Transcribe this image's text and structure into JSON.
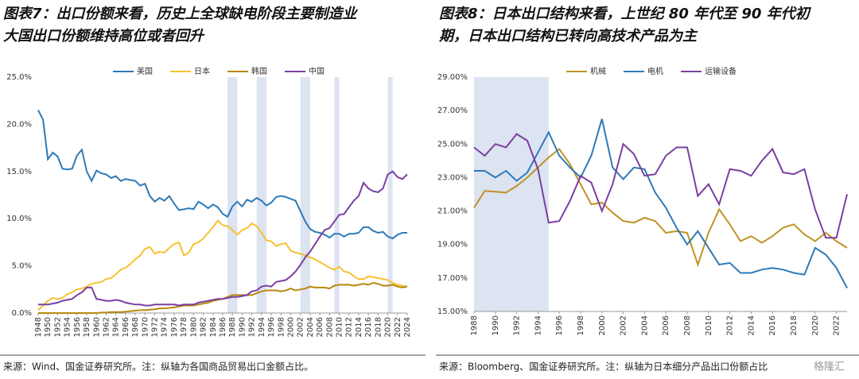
{
  "chart_data": [
    {
      "type": "line",
      "title": [
        "图表7：出口份额来看，历史上全球缺电阶段主要制造业",
        "大国出口份额维持高位或者回升"
      ],
      "source": "来源：Wind、国金证券研究所。注：纵轴为各国商品贸易出口金额占比。",
      "x": [
        1948,
        1949,
        1950,
        1951,
        1952,
        1953,
        1954,
        1955,
        1956,
        1957,
        1958,
        1959,
        1960,
        1961,
        1962,
        1963,
        1964,
        1965,
        1966,
        1967,
        1968,
        1969,
        1970,
        1971,
        1972,
        1973,
        1974,
        1975,
        1976,
        1977,
        1978,
        1979,
        1980,
        1981,
        1982,
        1983,
        1984,
        1985,
        1986,
        1987,
        1988,
        1989,
        1990,
        1991,
        1992,
        1993,
        1994,
        1995,
        1996,
        1997,
        1998,
        1999,
        2000,
        2001,
        2002,
        2003,
        2004,
        2005,
        2006,
        2007,
        2008,
        2009,
        2010,
        2011,
        2012,
        2013,
        2014,
        2015,
        2016,
        2017,
        2018,
        2019,
        2020,
        2021,
        2022,
        2023,
        2024
      ],
      "xlim": [
        1948,
        2024
      ],
      "xticks": [
        1948,
        1950,
        1952,
        1954,
        1956,
        1958,
        1960,
        1962,
        1964,
        1966,
        1968,
        1970,
        1972,
        1974,
        1976,
        1978,
        1980,
        1982,
        1984,
        1986,
        1988,
        1990,
        1992,
        1994,
        1996,
        1998,
        2000,
        2002,
        2004,
        2006,
        2008,
        2010,
        2012,
        2014,
        2016,
        2018,
        2020,
        2022,
        2024
      ],
      "ylim": [
        0,
        25
      ],
      "yticks": [
        {
          "value": 0,
          "label": "0.0%"
        },
        {
          "value": 5,
          "label": "5.0%"
        },
        {
          "value": 10,
          "label": "10.0%"
        },
        {
          "value": 15,
          "label": "15.0%"
        },
        {
          "value": 20,
          "label": "20.0%"
        },
        {
          "value": 25,
          "label": "25.0%"
        }
      ],
      "legend": "top",
      "shaded_ranges": [
        [
          1987,
          1989
        ],
        [
          1993,
          1995
        ],
        [
          2002,
          2004
        ],
        [
          2009,
          2010
        ],
        [
          2020,
          2021
        ]
      ],
      "shade_color": "#dce3f1",
      "series": [
        {
          "name": "美国",
          "color": "#2e7ab8",
          "values": [
            21.5,
            20.5,
            16.3,
            17.0,
            16.6,
            15.3,
            15.2,
            15.3,
            16.7,
            17.3,
            15.0,
            14.0,
            15.1,
            14.8,
            14.7,
            14.3,
            14.5,
            14.0,
            14.2,
            14.1,
            14.0,
            13.5,
            13.7,
            12.4,
            11.8,
            12.2,
            11.9,
            12.4,
            11.6,
            10.9,
            11.0,
            11.1,
            11.0,
            11.8,
            11.5,
            11.1,
            11.5,
            11.2,
            10.5,
            10.2,
            11.3,
            11.8,
            11.3,
            12.0,
            11.8,
            12.2,
            11.9,
            11.4,
            11.7,
            12.3,
            12.4,
            12.3,
            12.1,
            11.9,
            10.8,
            9.7,
            8.9,
            8.6,
            8.5,
            8.3,
            8.0,
            8.4,
            8.4,
            8.1,
            8.4,
            8.4,
            8.5,
            9.1,
            9.1,
            8.7,
            8.5,
            8.6,
            8.1,
            7.9,
            8.3,
            8.5,
            8.5
          ]
        },
        {
          "name": "日本",
          "color": "#f6c230",
          "values": [
            0.3,
            0.8,
            1.3,
            1.6,
            1.5,
            1.6,
            2.0,
            2.2,
            2.5,
            2.6,
            2.8,
            3.1,
            3.2,
            3.3,
            3.6,
            3.7,
            4.1,
            4.6,
            4.8,
            5.2,
            5.7,
            6.1,
            6.8,
            7.0,
            6.3,
            6.5,
            6.4,
            6.9,
            7.3,
            7.5,
            6.1,
            6.4,
            7.3,
            7.5,
            7.9,
            8.5,
            9.1,
            9.8,
            9.3,
            9.2,
            8.8,
            8.3,
            8.8,
            9.0,
            9.5,
            9.2,
            8.5,
            7.7,
            7.6,
            7.1,
            7.3,
            7.4,
            6.6,
            6.4,
            6.3,
            6.1,
            5.9,
            5.7,
            5.4,
            5.1,
            4.8,
            4.6,
            4.9,
            4.4,
            4.3,
            3.9,
            3.6,
            3.6,
            3.9,
            3.8,
            3.7,
            3.6,
            3.5,
            3.2,
            3.0,
            2.9,
            2.8
          ]
        },
        {
          "name": "韩国",
          "color": "#b8890f",
          "values": [
            0,
            0,
            0,
            0,
            0,
            0,
            0,
            0,
            0,
            0,
            0,
            0,
            0,
            0.05,
            0.05,
            0.1,
            0.1,
            0.1,
            0.15,
            0.2,
            0.25,
            0.3,
            0.3,
            0.35,
            0.4,
            0.5,
            0.5,
            0.55,
            0.6,
            0.7,
            0.8,
            0.8,
            0.8,
            0.9,
            1.0,
            1.1,
            1.3,
            1.4,
            1.5,
            1.7,
            1.9,
            1.9,
            1.9,
            1.9,
            1.9,
            2.1,
            2.3,
            2.4,
            2.4,
            2.4,
            2.3,
            2.4,
            2.6,
            2.4,
            2.5,
            2.6,
            2.8,
            2.7,
            2.7,
            2.7,
            2.6,
            2.9,
            3.0,
            3.0,
            3.0,
            2.9,
            3.0,
            3.1,
            3.0,
            3.2,
            3.1,
            2.9,
            2.9,
            3.0,
            2.8,
            2.7,
            2.8
          ]
        },
        {
          "name": "中国",
          "color": "#7b3fa0",
          "values": [
            0.9,
            0.9,
            0.9,
            1.0,
            1.1,
            1.3,
            1.4,
            1.5,
            1.9,
            2.2,
            2.7,
            2.7,
            1.5,
            1.4,
            1.3,
            1.3,
            1.4,
            1.3,
            1.1,
            1.0,
            0.9,
            0.9,
            0.8,
            0.8,
            0.9,
            0.9,
            0.9,
            0.9,
            0.9,
            0.8,
            0.9,
            0.9,
            0.9,
            1.1,
            1.2,
            1.3,
            1.4,
            1.5,
            1.5,
            1.6,
            1.7,
            1.7,
            1.8,
            1.9,
            2.3,
            2.4,
            2.8,
            2.9,
            2.8,
            3.3,
            3.4,
            3.5,
            3.9,
            4.4,
            5.1,
            5.9,
            6.5,
            7.3,
            8.1,
            8.8,
            9.0,
            9.7,
            10.4,
            10.5,
            11.2,
            11.9,
            12.4,
            13.8,
            13.2,
            12.9,
            12.8,
            13.2,
            14.7,
            15.0,
            14.4,
            14.2,
            14.7
          ]
        }
      ]
    },
    {
      "type": "line",
      "title": [
        "图表8：日本出口结构来看，上世纪 80 年代至 90 年代初",
        "期，日本出口结构已转向高技术产品为主"
      ],
      "source": "来源：Bloomberg、国金证券研究所。注：纵轴为日本细分产品出口份额占比",
      "x": [
        1988,
        1989,
        1990,
        1991,
        1992,
        1993,
        1994,
        1995,
        1996,
        1997,
        1998,
        1999,
        2000,
        2001,
        2002,
        2003,
        2004,
        2005,
        2006,
        2007,
        2008,
        2009,
        2010,
        2011,
        2012,
        2013,
        2014,
        2015,
        2016,
        2017,
        2018,
        2019,
        2020,
        2021,
        2022,
        2023
      ],
      "xlim": [
        1988,
        2023
      ],
      "xticks": [
        1988,
        1990,
        1992,
        1994,
        1996,
        1998,
        2000,
        2002,
        2004,
        2006,
        2008,
        2010,
        2012,
        2014,
        2016,
        2018,
        2020,
        2022
      ],
      "ylim": [
        15,
        29
      ],
      "yticks": [
        {
          "value": 15,
          "label": "15.00%"
        },
        {
          "value": 17,
          "label": "17.00%"
        },
        {
          "value": 19,
          "label": "19.00%"
        },
        {
          "value": 21,
          "label": "21.00%"
        },
        {
          "value": 23,
          "label": "23.00%"
        },
        {
          "value": 25,
          "label": "25.00%"
        },
        {
          "value": 27,
          "label": "27.00%"
        },
        {
          "value": 29,
          "label": "29.00%"
        }
      ],
      "legend": "top",
      "shaded_ranges": [
        [
          1988,
          1995
        ]
      ],
      "shade_color": "#dce3f1",
      "series": [
        {
          "name": "机械",
          "color": "#bf9424",
          "values": [
            21.2,
            22.2,
            22.15,
            22.1,
            22.5,
            23.0,
            23.6,
            24.2,
            24.7,
            23.8,
            22.6,
            21.4,
            21.5,
            20.9,
            20.4,
            20.3,
            20.6,
            20.4,
            19.7,
            19.8,
            19.7,
            17.8,
            19.7,
            21.1,
            20.2,
            19.2,
            19.5,
            19.1,
            19.5,
            20.0,
            20.2,
            19.6,
            19.2,
            19.7,
            19.2,
            18.8
          ]
        },
        {
          "name": "电机",
          "color": "#2e7ab8",
          "values": [
            23.4,
            23.4,
            23.0,
            23.4,
            22.8,
            23.3,
            24.5,
            25.7,
            24.3,
            23.6,
            23.0,
            24.3,
            26.5,
            23.6,
            22.9,
            23.6,
            23.5,
            22.1,
            21.2,
            20.0,
            19.0,
            19.8,
            18.8,
            17.8,
            17.9,
            17.3,
            17.3,
            17.5,
            17.6,
            17.5,
            17.3,
            17.2,
            18.8,
            18.4,
            17.6,
            16.4
          ]
        },
        {
          "name": "运输设备",
          "color": "#7b3fa0",
          "values": [
            24.8,
            24.3,
            25.0,
            24.8,
            25.6,
            25.2,
            23.5,
            20.3,
            20.4,
            21.6,
            23.1,
            22.7,
            21.0,
            22.6,
            25.0,
            24.4,
            23.1,
            23.2,
            24.3,
            24.8,
            24.8,
            21.9,
            22.6,
            21.4,
            23.5,
            23.4,
            23.1,
            24.0,
            24.7,
            23.3,
            23.2,
            23.5,
            21.1,
            19.4,
            19.4,
            22.0
          ]
        }
      ]
    }
  ],
  "watermark": "格隆汇"
}
